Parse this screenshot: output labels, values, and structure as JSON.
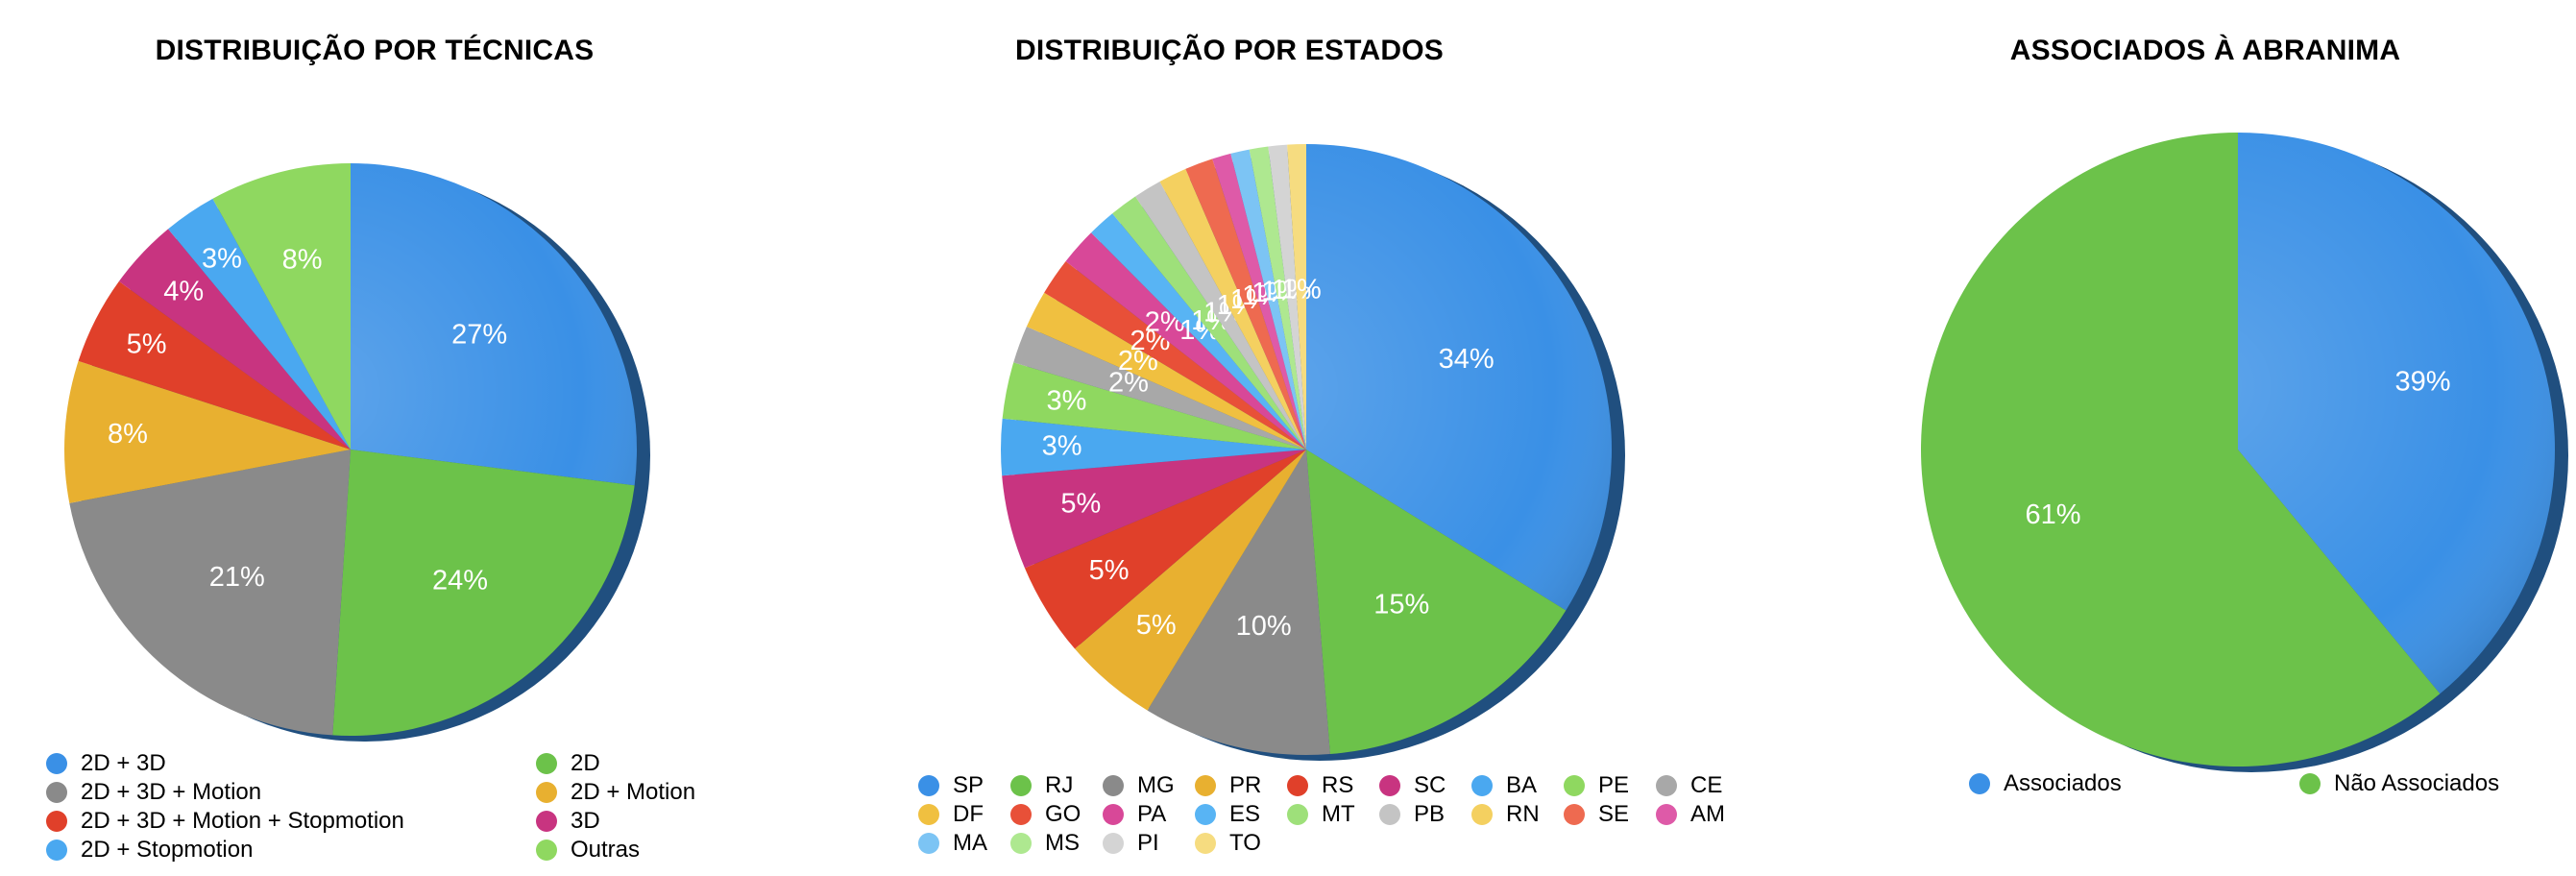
{
  "chart_data": [
    {
      "type": "pie",
      "title": "DISTRIBUIÇÃO POR TÉCNICAS",
      "slices": [
        {
          "label": "2D + 3D",
          "value": 27,
          "display": "27%",
          "color": "#3a90e6"
        },
        {
          "label": "2D",
          "value": 24,
          "display": "24%",
          "color": "#6cc24a"
        },
        {
          "label": "2D + 3D + Motion",
          "value": 21,
          "display": "21%",
          "color": "#8a8a8a"
        },
        {
          "label": "2D + Motion",
          "value": 8,
          "display": "8%",
          "color": "#e8b030"
        },
        {
          "label": "2D + 3D + Motion + Stopmotion",
          "value": 5,
          "display": "5%",
          "color": "#e0402a"
        },
        {
          "label": "3D",
          "value": 4,
          "display": "4%",
          "color": "#c83480"
        },
        {
          "label": "2D + Stopmotion",
          "value": 3,
          "display": "3%",
          "color": "#4aa8f0"
        },
        {
          "label": "Outras",
          "value": 8,
          "display": "8%",
          "color": "#8fd860"
        }
      ],
      "legend_order": [
        "2D + 3D",
        "2D",
        "2D + 3D + Motion",
        "2D + Motion",
        "2D + 3D + Motion + Stopmotion",
        "3D",
        "2D + Stopmotion",
        "Outras"
      ],
      "legend_position": "bottom"
    },
    {
      "type": "pie",
      "title": "DISTRIBUIÇÃO POR ESTADOS",
      "slices": [
        {
          "label": "SP",
          "value": 34,
          "display": "34%",
          "color": "#3a90e6"
        },
        {
          "label": "RJ",
          "value": 15,
          "display": "15%",
          "color": "#6cc24a"
        },
        {
          "label": "MG",
          "value": 10,
          "display": "10%",
          "color": "#8a8a8a"
        },
        {
          "label": "PR",
          "value": 5,
          "display": "5%",
          "color": "#e8b030"
        },
        {
          "label": "RS",
          "value": 5,
          "display": "5%",
          "color": "#e0402a"
        },
        {
          "label": "SC",
          "value": 5,
          "display": "5%",
          "color": "#c83480"
        },
        {
          "label": "BA",
          "value": 3,
          "display": "3%",
          "color": "#4aa8f0"
        },
        {
          "label": "PE",
          "value": 3,
          "display": "3%",
          "color": "#8fd860"
        },
        {
          "label": "CE",
          "value": 2,
          "display": "2%",
          "color": "#a8a8a8"
        },
        {
          "label": "DF",
          "value": 2,
          "display": "2%",
          "color": "#f0c040"
        },
        {
          "label": "GO",
          "value": 2,
          "display": "2%",
          "color": "#e85038"
        },
        {
          "label": "PA",
          "value": 2,
          "display": "2%",
          "color": "#d84898"
        },
        {
          "label": "ES",
          "value": 1.5,
          "display": "1%",
          "color": "#58b4f4"
        },
        {
          "label": "MT",
          "value": 1.5,
          "display": "1%",
          "color": "#9ee07a"
        },
        {
          "label": "PB",
          "value": 1.5,
          "display": "1%",
          "color": "#c4c4c4"
        },
        {
          "label": "RN",
          "value": 1.5,
          "display": "1%",
          "color": "#f4d060"
        },
        {
          "label": "SE",
          "value": 1.5,
          "display": "1%",
          "color": "#ee6a50"
        },
        {
          "label": "AM",
          "value": 1,
          "display": "1%",
          "color": "#de5aa8"
        },
        {
          "label": "MA",
          "value": 1,
          "display": "1%",
          "color": "#7cc4f4"
        },
        {
          "label": "MS",
          "value": 1,
          "display": "1%",
          "color": "#aee890"
        },
        {
          "label": "PI",
          "value": 1,
          "display": "1%",
          "color": "#d4d4d4"
        },
        {
          "label": "TO",
          "value": 1,
          "display": "1%",
          "color": "#f6dc80"
        }
      ],
      "legend_order": [
        "SP",
        "RJ",
        "MG",
        "PR",
        "RS",
        "SC",
        "BA",
        "PE",
        "CE",
        "DF",
        "GO",
        "PA",
        "ES",
        "MT",
        "PB",
        "RN",
        "SE",
        "AM",
        "MA",
        "MS",
        "PI",
        "TO"
      ],
      "legend_position": "bottom"
    },
    {
      "type": "pie",
      "title": "ASSOCIADOS À ABRANIMA",
      "slices": [
        {
          "label": "Associados",
          "value": 39,
          "display": "39%",
          "color": "#3a90e6"
        },
        {
          "label": "Não Associados",
          "value": 61,
          "display": "61%",
          "color": "#6cc24a"
        }
      ],
      "legend_order": [
        "Associados",
        "Não Associados"
      ],
      "legend_position": "bottom"
    }
  ]
}
